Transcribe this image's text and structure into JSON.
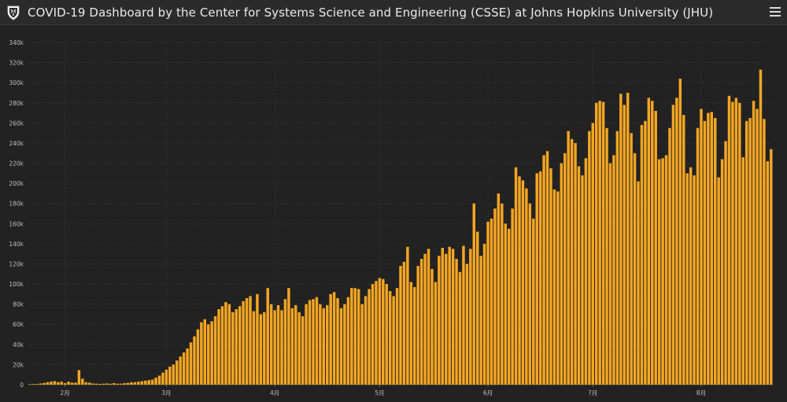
{
  "header": {
    "title": "COVID-19 Dashboard by the Center for Systems Science and Engineering (CSSE) at Johns Hopkins University (JHU)"
  },
  "icons": {
    "logo": "jhu-shield-icon",
    "menu": "hamburger-menu-icon"
  },
  "colors": {
    "bar": "#f5a623",
    "background": "#222222",
    "gridline": "#3a3a3a",
    "tick_text": "#bdbdbd"
  },
  "chart_data": {
    "type": "bar",
    "title": "",
    "xlabel": "",
    "ylabel": "",
    "ylim": [
      0,
      340000
    ],
    "y_ticks": [
      {
        "value": 0,
        "label": "0"
      },
      {
        "value": 20000,
        "label": "20k"
      },
      {
        "value": 40000,
        "label": "40k"
      },
      {
        "value": 60000,
        "label": "60k"
      },
      {
        "value": 80000,
        "label": "80k"
      },
      {
        "value": 100000,
        "label": "100k"
      },
      {
        "value": 120000,
        "label": "120k"
      },
      {
        "value": 140000,
        "label": "140k"
      },
      {
        "value": 160000,
        "label": "160k"
      },
      {
        "value": 180000,
        "label": "180k"
      },
      {
        "value": 200000,
        "label": "200k"
      },
      {
        "value": 220000,
        "label": "220k"
      },
      {
        "value": 240000,
        "label": "240k"
      },
      {
        "value": 260000,
        "label": "260k"
      },
      {
        "value": 280000,
        "label": "280k"
      },
      {
        "value": 300000,
        "label": "300k"
      },
      {
        "value": 320000,
        "label": "320k"
      },
      {
        "value": 340000,
        "label": "340k"
      }
    ],
    "x_ticks": [
      {
        "index": 10,
        "label": "2月"
      },
      {
        "index": 39,
        "label": "3月"
      },
      {
        "index": 70,
        "label": "4月"
      },
      {
        "index": 100,
        "label": "5月"
      },
      {
        "index": 131,
        "label": "6月"
      },
      {
        "index": 161,
        "label": "7月"
      },
      {
        "index": 192,
        "label": "8月"
      }
    ],
    "grid": true,
    "legend": "none",
    "values": [
      500,
      700,
      600,
      1200,
      1700,
      2500,
      3000,
      3500,
      2500,
      3000,
      1500,
      3000,
      2000,
      2000,
      14500,
      6000,
      2500,
      2000,
      1200,
      1000,
      800,
      1000,
      1200,
      900,
      1500,
      1000,
      1000,
      1500,
      1800,
      2500,
      2500,
      3000,
      3500,
      4000,
      4500,
      5000,
      7000,
      9000,
      12000,
      15000,
      18000,
      20000,
      24000,
      28000,
      32000,
      36000,
      42000,
      48000,
      55000,
      62000,
      65000,
      60000,
      63000,
      68000,
      75000,
      78000,
      82000,
      80000,
      72000,
      75000,
      78000,
      83000,
      86000,
      88000,
      73000,
      90000,
      70000,
      72000,
      96000,
      80000,
      74000,
      79000,
      74000,
      85000,
      96000,
      76000,
      79000,
      72000,
      68000,
      80000,
      84000,
      85000,
      87000,
      80000,
      76000,
      79000,
      90000,
      92000,
      86000,
      76000,
      80000,
      87000,
      96000,
      96000,
      95000,
      80000,
      88000,
      95000,
      100000,
      103000,
      106000,
      105000,
      100000,
      93000,
      88000,
      96000,
      118000,
      122000,
      137000,
      102000,
      97000,
      118000,
      125000,
      130000,
      135000,
      115000,
      102000,
      128000,
      136000,
      130000,
      137000,
      135000,
      125000,
      112000,
      138000,
      120000,
      135000,
      180000,
      152000,
      128000,
      140000,
      162000,
      165000,
      175000,
      190000,
      180000,
      160000,
      155000,
      175000,
      216000,
      207000,
      203000,
      195000,
      180000,
      165000,
      210000,
      212000,
      228000,
      232000,
      215000,
      194000,
      192000,
      220000,
      230000,
      252000,
      244000,
      240000,
      217000,
      208000,
      225000,
      252000,
      260000,
      280000,
      282000,
      281000,
      255000,
      220000,
      228000,
      252000,
      289000,
      278000,
      290000,
      250000,
      230000,
      202000,
      258000,
      262000,
      285000,
      282000,
      272000,
      224000,
      225000,
      228000,
      255000,
      278000,
      285000,
      304000,
      268000,
      210000,
      216000,
      208000,
      255000,
      274000,
      262000,
      270000,
      271000,
      265000,
      206000,
      224000,
      242000,
      287000,
      281000,
      285000,
      280000,
      226000,
      262000,
      265000,
      282000,
      274000,
      313000,
      264000,
      222000,
      234000
    ]
  }
}
